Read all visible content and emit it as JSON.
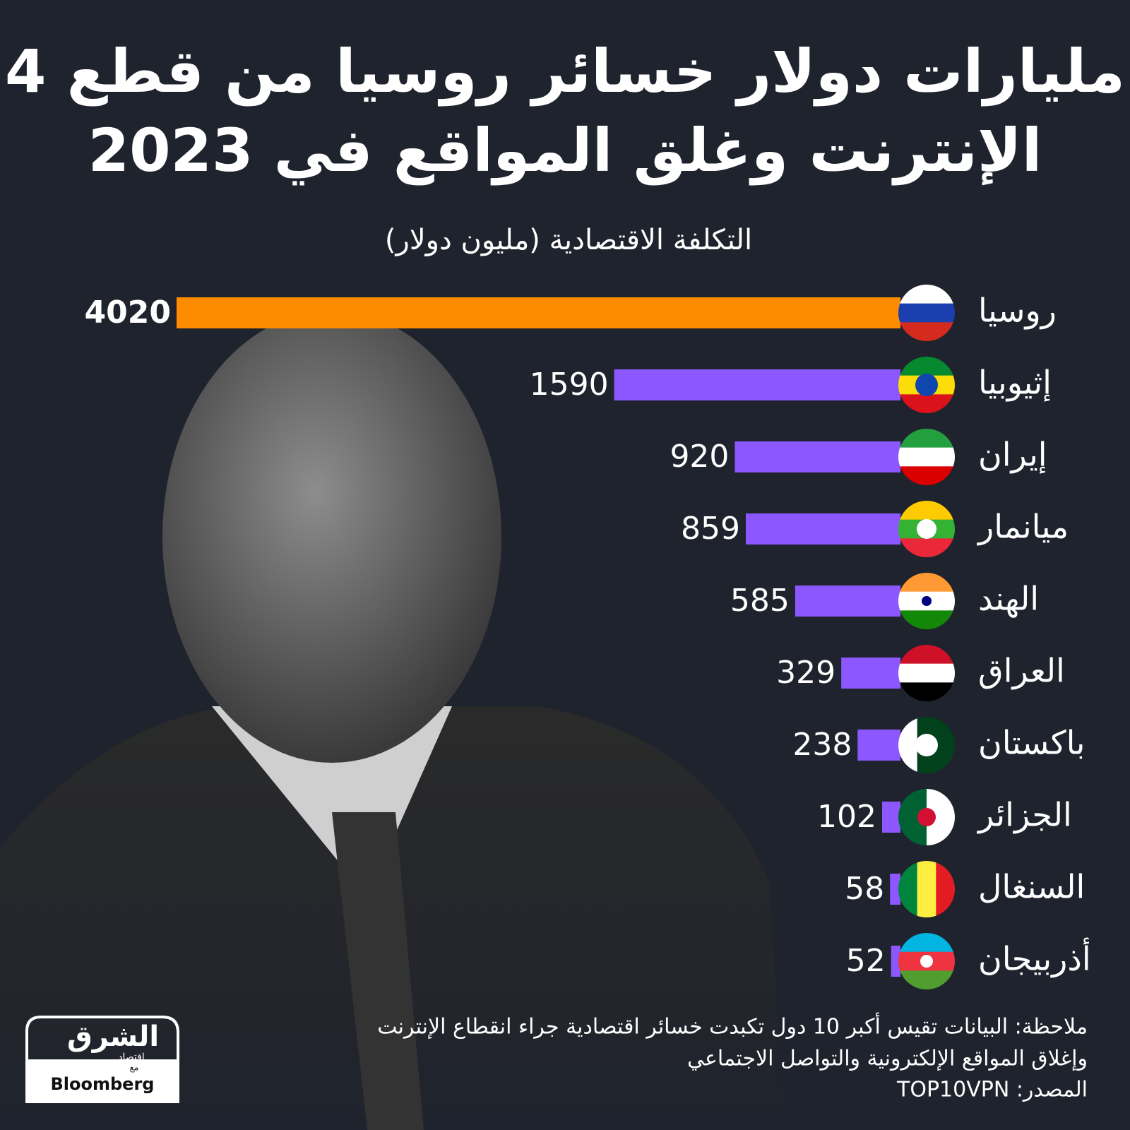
{
  "chart_data": {
    "type": "bar",
    "orientation": "horizontal",
    "title": [
      "4 مليارات دولار خسائر روسيا من قطع",
      "الإنترنت وغلق المواقع في 2023"
    ],
    "subtitle": "التكلفة الاقتصادية (مليون دولار)",
    "categories": [
      "روسيا",
      "إثيوبيا",
      "إيران",
      "ميانمار",
      "الهند",
      "العراق",
      "باكستان",
      "الجزائر",
      "السنغال",
      "أذربيجان"
    ],
    "values": [
      4020,
      1590,
      920,
      859,
      585,
      329,
      238,
      102,
      58,
      52
    ],
    "colors": [
      "#ff8c00",
      "#8c57ff",
      "#8c57ff",
      "#8c57ff",
      "#8c57ff",
      "#8c57ff",
      "#8c57ff",
      "#8c57ff",
      "#8c57ff",
      "#8c57ff"
    ],
    "notes": [
      "ملاحظة: البيانات تقيس أكبر 10 دول تكبدت خسائر اقتصادية  جراء انقطاع الإنترنت",
      "وإغلاق المواقع الإلكترونية والتواصل الاجتماعي",
      "المصدر: TOP10VPN"
    ]
  },
  "logo": {
    "name": "الشرق",
    "sub": "اقتصاد",
    "with": "مع",
    "partner": "Bloomberg"
  }
}
